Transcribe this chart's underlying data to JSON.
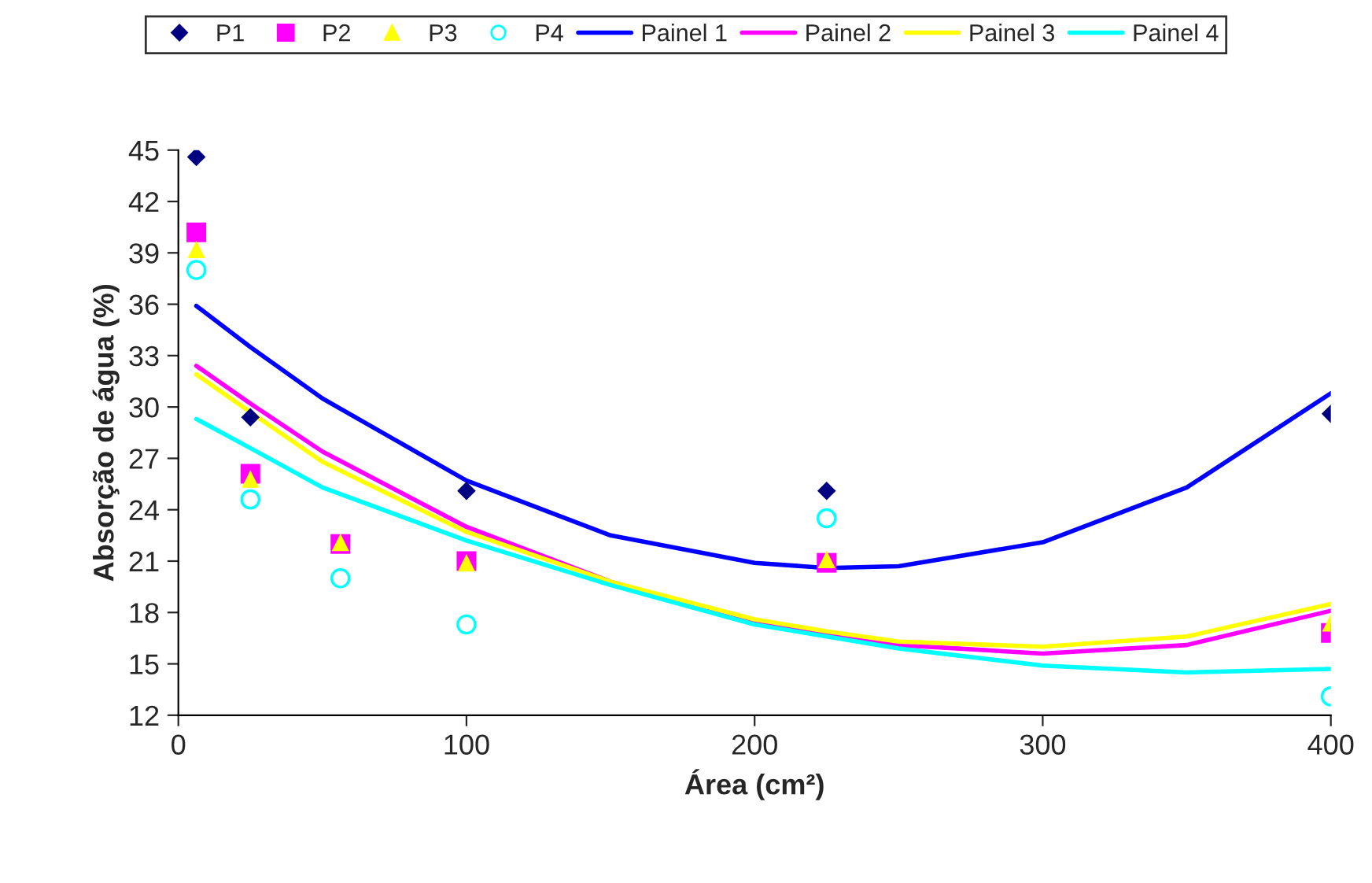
{
  "chart_data": {
    "type": "scatter",
    "xlabel": "Área (cm²)",
    "ylabel": "Absorção de água (%)",
    "xlim": [
      0,
      400
    ],
    "xticks": [
      0,
      100,
      200,
      300,
      400
    ],
    "ylim": [
      12,
      45
    ],
    "yticks": [
      12,
      15,
      18,
      21,
      24,
      27,
      30,
      33,
      36,
      39,
      42,
      45
    ],
    "grid": false,
    "legend": "top",
    "series": [
      {
        "name": "P1",
        "marker": "diamond",
        "color": "#000080",
        "x": [
          6.25,
          25,
          56.25,
          100,
          225,
          400
        ],
        "values": [
          44.6,
          29.4,
          null,
          25.1,
          25.1,
          29.6
        ]
      },
      {
        "name": "P2",
        "marker": "square",
        "color": "#ff00ff",
        "x": [
          6.25,
          25,
          56.25,
          100,
          225,
          400
        ],
        "values": [
          40.2,
          26.1,
          22.0,
          21.0,
          20.9,
          16.8
        ]
      },
      {
        "name": "P3",
        "marker": "triangle",
        "color": "#ffff00",
        "x": [
          6.25,
          25,
          56.25,
          100,
          225,
          400
        ],
        "values": [
          39.2,
          25.8,
          22.1,
          20.9,
          21.1,
          17.4
        ]
      },
      {
        "name": "P4",
        "marker": "circle",
        "color": "#00ffff",
        "x": [
          6.25,
          25,
          56.25,
          100,
          225,
          400
        ],
        "values": [
          38.0,
          24.6,
          20.0,
          17.3,
          23.5,
          13.1
        ]
      },
      {
        "name": "Painel 1",
        "type": "line",
        "color": "#0000ff",
        "x": [
          6.25,
          25,
          50,
          100,
          150,
          200,
          225,
          250,
          300,
          350,
          400
        ],
        "values": [
          35.9,
          33.5,
          30.5,
          25.7,
          22.5,
          20.9,
          20.6,
          20.7,
          22.1,
          25.3,
          30.8
        ]
      },
      {
        "name": "Painel 2",
        "type": "line",
        "color": "#ff00ff",
        "x": [
          6.25,
          25,
          50,
          100,
          150,
          200,
          225,
          250,
          300,
          350,
          400
        ],
        "values": [
          32.4,
          30.2,
          27.4,
          23.0,
          19.8,
          17.4,
          16.7,
          16.1,
          15.6,
          16.1,
          18.1
        ]
      },
      {
        "name": "Painel 3",
        "type": "line",
        "color": "#ffff00",
        "x": [
          6.25,
          25,
          50,
          100,
          150,
          200,
          225,
          250,
          300,
          350,
          400
        ],
        "values": [
          31.9,
          29.7,
          26.8,
          22.7,
          19.8,
          17.6,
          16.9,
          16.3,
          16.0,
          16.6,
          18.5
        ]
      },
      {
        "name": "Painel 4",
        "type": "line",
        "color": "#00ffff",
        "x": [
          6.25,
          25,
          50,
          100,
          150,
          200,
          225,
          250,
          300,
          350,
          400
        ],
        "values": [
          29.3,
          27.6,
          25.3,
          22.2,
          19.6,
          17.3,
          16.6,
          15.9,
          14.9,
          14.5,
          14.7
        ]
      }
    ]
  }
}
